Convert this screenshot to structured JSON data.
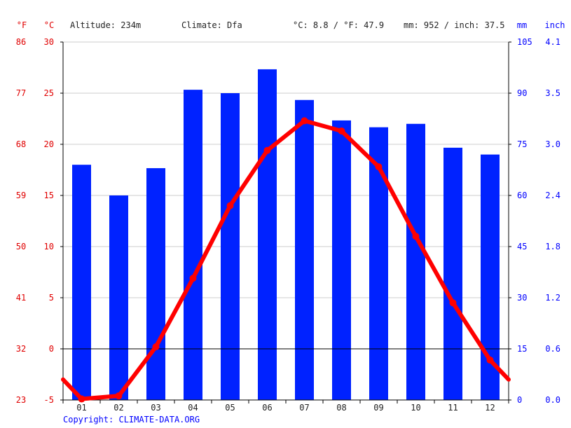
{
  "header": {
    "unit_f": "°F",
    "unit_c": "°C",
    "altitude": "Altitude: 234m",
    "climate": "Climate: Dfa",
    "temp_avg": "°C: 8.8 / °F: 47.9",
    "precip_total": "mm: 952 / inch: 37.5",
    "unit_mm": "mm",
    "unit_inch": "inch"
  },
  "copyright": "Copyright: CLIMATE-DATA.ORG",
  "colors": {
    "temperature": "#ff0000",
    "precipitation": "#0022ff",
    "grid": "#cccccc",
    "zero_line": "#000000"
  },
  "chart_data": {
    "type": "bar",
    "categories": [
      "01",
      "02",
      "03",
      "04",
      "05",
      "06",
      "07",
      "08",
      "09",
      "10",
      "11",
      "12"
    ],
    "series": [
      {
        "name": "",
        "type": "bar",
        "axis": "right",
        "values": [
          69,
          60,
          68,
          91,
          90,
          97,
          88,
          82,
          80,
          81,
          74,
          72
        ]
      },
      {
        "name": "",
        "type": "line",
        "axis": "left",
        "values": [
          -4.9,
          -4.6,
          0.2,
          6.9,
          14.0,
          19.4,
          22.3,
          21.3,
          17.8,
          11.0,
          4.5,
          -1.1
        ],
        "edge_values": [
          -3.0,
          -3.0
        ]
      }
    ],
    "celsius_ticks": [
      "30",
      "25",
      "20",
      "15",
      "10",
      "5",
      "0",
      "-5"
    ],
    "fahrenheit_ticks": [
      "86",
      "77",
      "68",
      "59",
      "50",
      "41",
      "32",
      "23"
    ],
    "mm_ticks": [
      "105",
      "90",
      "75",
      "60",
      "45",
      "30",
      "15",
      "0"
    ],
    "inch_ticks": [
      "4.1",
      "3.5",
      "3.0",
      "2.4",
      "1.8",
      "1.2",
      "0.6",
      "0.0"
    ],
    "ylim_celsius": [
      -5,
      30
    ],
    "ylim_mm": [
      0,
      105
    ],
    "grid": true,
    "legend": "none"
  }
}
